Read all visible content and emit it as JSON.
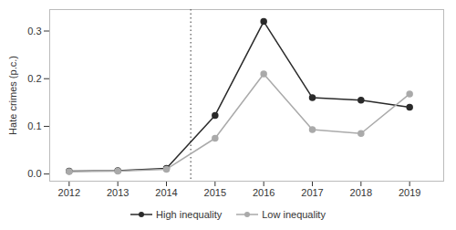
{
  "chart_data": {
    "type": "line",
    "x": [
      2012,
      2013,
      2014,
      2015,
      2016,
      2017,
      2018,
      2019
    ],
    "series": [
      {
        "name": "High inequality",
        "color": "#2a2a2a",
        "marker": "circle",
        "line_style": "solid",
        "values": [
          0.006,
          0.007,
          0.012,
          0.123,
          0.32,
          0.16,
          0.155,
          0.14
        ]
      },
      {
        "name": "Low inequality",
        "color": "#aaaaaa",
        "marker": "circle",
        "line_style": "solid",
        "values": [
          0.005,
          0.006,
          0.01,
          0.075,
          0.21,
          0.093,
          0.085,
          0.168
        ]
      }
    ],
    "ylabel": "Hate crimes (p.c.)",
    "xlim": [
      2011.6,
      2019.7
    ],
    "xticks": [
      2012,
      2013,
      2014,
      2015,
      2016,
      2017,
      2018,
      2019
    ],
    "ylim": [
      -0.015,
      0.345
    ],
    "yticks": [
      {
        "value": 0.0,
        "label": "0.0"
      },
      0.1,
      0.2,
      0.3
    ],
    "vline": {
      "x": 2014.5,
      "line_style": "dotted"
    },
    "grid": false,
    "legend": "bottom"
  }
}
